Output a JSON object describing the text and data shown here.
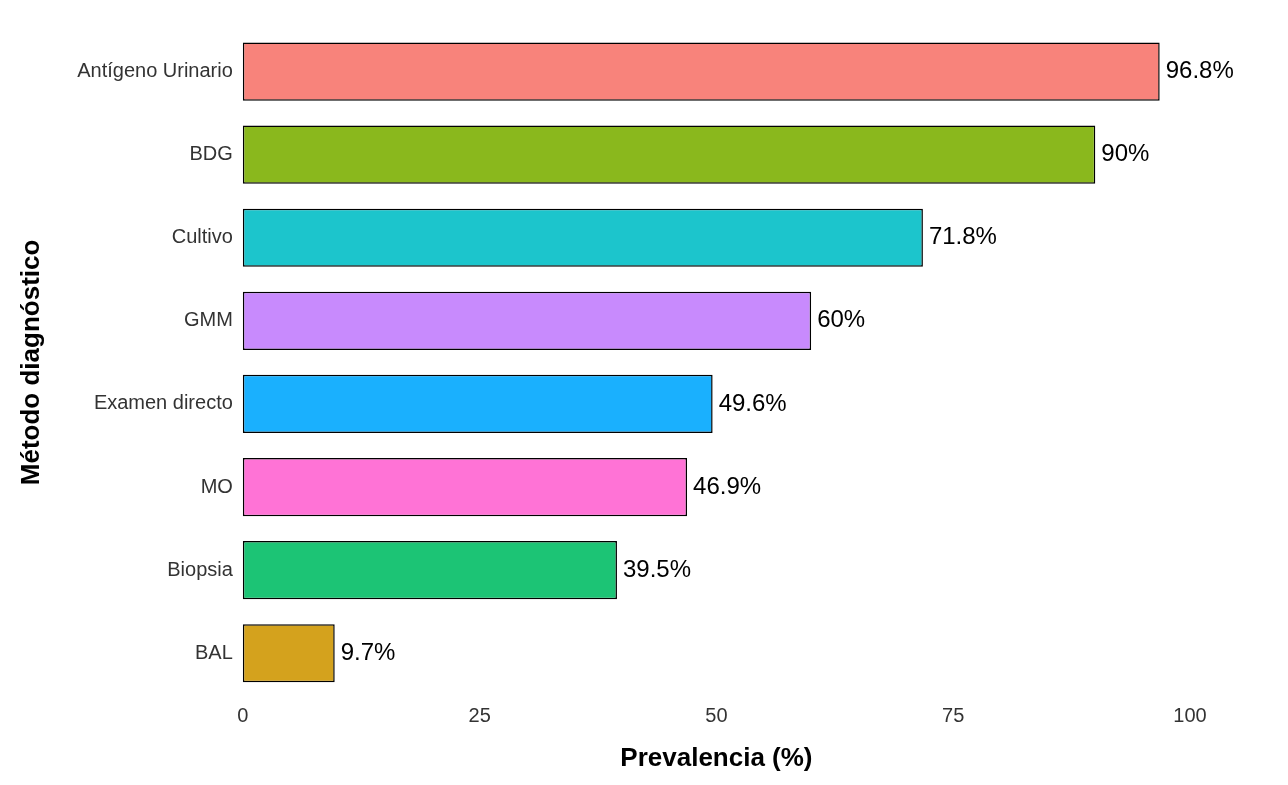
{
  "chart_data": {
    "type": "bar",
    "orientation": "horizontal",
    "categories": [
      "Antígeno Urinario",
      "BDG",
      "Cultivo",
      "GMM",
      "Examen directo",
      "MO",
      "Biopsia",
      "BAL"
    ],
    "values": [
      96.8,
      90,
      71.8,
      60,
      49.6,
      46.9,
      39.5,
      9.7
    ],
    "value_labels": [
      "96.8%",
      "90%",
      "71.8%",
      "60%",
      "49.6%",
      "46.9%",
      "39.5%",
      "9.7%"
    ],
    "colors": [
      "#f8837b",
      "#8ab81d",
      "#1cc5cc",
      "#c88afd",
      "#1ab0fe",
      "#ff73d6",
      "#1cc475",
      "#d4a21d"
    ],
    "xlabel": "Prevalencia (%)",
    "ylabel": "Método diagnóstico",
    "xlim": [
      0,
      100
    ],
    "xticks": [
      0,
      25,
      50,
      75,
      100
    ],
    "grid": false,
    "legend": false
  }
}
